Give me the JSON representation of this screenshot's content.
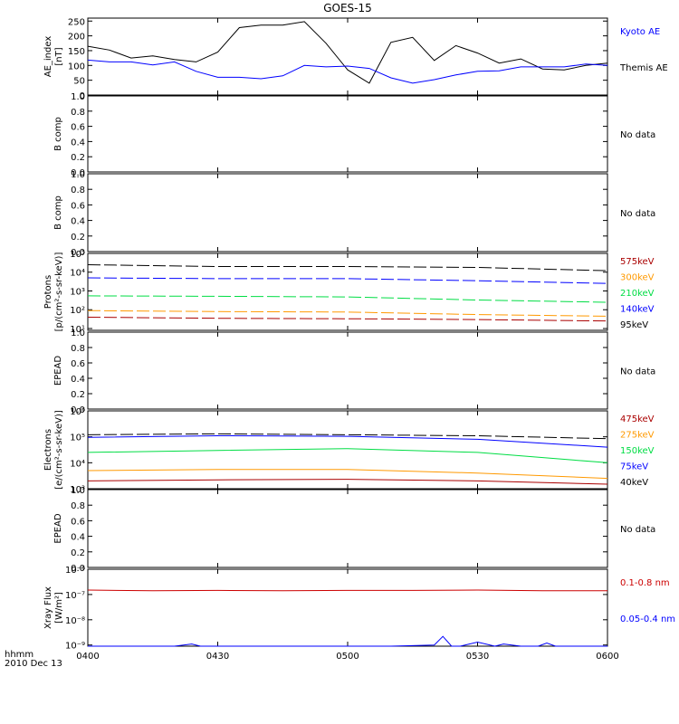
{
  "title": "GOES-15",
  "colors": {
    "black": "#000000",
    "blue": "#0000ff",
    "green": "#00dd44",
    "orange": "#ff9900",
    "red": "#cc0000",
    "darkred": "#aa0000"
  },
  "time_axis": {
    "ticks": [
      "0400",
      "0430",
      "0500",
      "0530",
      "0600"
    ],
    "label_line1": "hhmm",
    "label_line2": "2010 Dec 13",
    "range_min": [
      0,
      120
    ]
  },
  "chart_data": [
    {
      "type": "line",
      "ylabel_lines": [
        "AE_index",
        "[nT]"
      ],
      "yticks": [
        "250",
        "200",
        "150",
        "100",
        "50",
        "0"
      ],
      "ylim": [
        0,
        260
      ],
      "ytick_values": [
        250,
        200,
        150,
        100,
        50,
        0
      ],
      "legend": [
        {
          "text": "Kyoto AE",
          "color": "blue"
        },
        {
          "text": "Themis AE",
          "color": "black"
        }
      ],
      "series": [
        {
          "name": "Themis AE",
          "color": "black",
          "x": [
            0,
            5,
            10,
            15,
            20,
            25,
            30,
            35,
            40,
            45,
            50,
            55,
            60,
            65,
            70,
            75,
            80,
            85,
            90,
            95,
            100,
            105,
            110,
            115,
            120
          ],
          "y": [
            165,
            152,
            125,
            132,
            120,
            112,
            145,
            228,
            236,
            236,
            248,
            175,
            85,
            40,
            178,
            195,
            117,
            167,
            142,
            108,
            122,
            88,
            85,
            100,
            108
          ]
        },
        {
          "name": "Kyoto AE",
          "color": "blue",
          "x": [
            0,
            5,
            10,
            15,
            20,
            25,
            30,
            35,
            40,
            45,
            50,
            55,
            60,
            65,
            70,
            75,
            80,
            85,
            90,
            95,
            100,
            105,
            110,
            115,
            120
          ],
          "y": [
            118,
            112,
            112,
            102,
            112,
            80,
            60,
            60,
            55,
            65,
            100,
            95,
            98,
            90,
            58,
            40,
            52,
            68,
            80,
            82,
            95,
            95,
            95,
            105,
            100
          ]
        }
      ]
    },
    {
      "type": "line",
      "ylabel_lines": [
        "B comp"
      ],
      "yticks": [
        "1.0",
        "0.8",
        "0.6",
        "0.4",
        "0.2",
        "0.0"
      ],
      "ylim": [
        0,
        1
      ],
      "ytick_values": [
        1,
        0.8,
        0.6,
        0.4,
        0.2,
        0
      ],
      "nodata": "No data",
      "series": []
    },
    {
      "type": "line",
      "ylabel_lines": [
        "B comp"
      ],
      "yticks": [
        "1.0",
        "0.8",
        "0.6",
        "0.4",
        "0.2",
        "0.0"
      ],
      "ylim": [
        0,
        1
      ],
      "ytick_values": [
        1,
        0.8,
        0.6,
        0.4,
        0.2,
        0
      ],
      "nodata": "No data",
      "series": []
    },
    {
      "type": "line",
      "log": true,
      "ylabel_lines": [
        "Protons",
        "[p/(cm²-s-sr-keV)]"
      ],
      "yticks": [
        "10⁵",
        "10⁴",
        "10³",
        "10²",
        "10¹"
      ],
      "ytick_values": [
        100000,
        10000,
        1000,
        100,
        10
      ],
      "ylim": [
        8,
        100000
      ],
      "legend": [
        {
          "text": "575keV",
          "color": "darkred"
        },
        {
          "text": "300keV",
          "color": "orange"
        },
        {
          "text": "210keV",
          "color": "green"
        },
        {
          "text": "140keV",
          "color": "blue"
        },
        {
          "text": "95keV",
          "color": "black"
        }
      ],
      "series": [
        {
          "name": "95keV",
          "color": "black",
          "dashed": true,
          "x": [
            0,
            30,
            60,
            90,
            120
          ],
          "y": [
            25000,
            20000,
            20000,
            18000,
            12000
          ]
        },
        {
          "name": "140keV",
          "color": "blue",
          "dashed": true,
          "x": [
            0,
            30,
            60,
            90,
            120
          ],
          "y": [
            5000,
            4500,
            4500,
            3500,
            2500
          ]
        },
        {
          "name": "210keV",
          "color": "green",
          "dashed": true,
          "x": [
            0,
            30,
            60,
            90,
            120
          ],
          "y": [
            550,
            520,
            480,
            330,
            250
          ]
        },
        {
          "name": "300keV",
          "color": "orange",
          "dashed": true,
          "x": [
            0,
            30,
            60,
            90,
            120
          ],
          "y": [
            90,
            80,
            75,
            55,
            45
          ]
        },
        {
          "name": "575keV",
          "color": "darkred",
          "dashed": true,
          "x": [
            0,
            30,
            60,
            90,
            120
          ],
          "y": [
            40,
            35,
            33,
            30,
            25
          ]
        }
      ]
    },
    {
      "type": "line",
      "ylabel_lines": [
        "EPEAD"
      ],
      "yticks": [
        "1.0",
        "0.8",
        "0.6",
        "0.4",
        "0.2",
        "0.0"
      ],
      "ylim": [
        0,
        1
      ],
      "ytick_values": [
        1,
        0.8,
        0.6,
        0.4,
        0.2,
        0
      ],
      "nodata": "No data",
      "series": []
    },
    {
      "type": "line",
      "log": true,
      "ylabel_lines": [
        "Electrons",
        "[e/(cm²-s-sr-keV)]"
      ],
      "yticks": [
        "10⁶",
        "10⁵",
        "10⁴",
        "10³"
      ],
      "ytick_values": [
        1000000,
        100000,
        10000,
        1000
      ],
      "ylim": [
        1000,
        1000000
      ],
      "legend": [
        {
          "text": "475keV",
          "color": "darkred"
        },
        {
          "text": "275keV",
          "color": "orange"
        },
        {
          "text": "150keV",
          "color": "green"
        },
        {
          "text": "75keV",
          "color": "blue"
        },
        {
          "text": "40keV",
          "color": "black"
        }
      ],
      "series": [
        {
          "name": "40keV",
          "color": "black",
          "dashed": true,
          "x": [
            0,
            30,
            60,
            90,
            120
          ],
          "y": [
            120000,
            130000,
            120000,
            110000,
            85000
          ]
        },
        {
          "name": "75keV",
          "color": "blue",
          "dashed": false,
          "x": [
            0,
            30,
            60,
            90,
            120
          ],
          "y": [
            95000,
            110000,
            105000,
            80000,
            40000
          ]
        },
        {
          "name": "150keV",
          "color": "green",
          "dashed": false,
          "x": [
            0,
            30,
            60,
            90,
            120
          ],
          "y": [
            25000,
            30000,
            35000,
            25000,
            10000
          ]
        },
        {
          "name": "275keV",
          "color": "orange",
          "dashed": false,
          "x": [
            0,
            30,
            60,
            90,
            120
          ],
          "y": [
            5000,
            5500,
            5500,
            4000,
            2500
          ]
        },
        {
          "name": "475keV",
          "color": "darkred",
          "dashed": false,
          "x": [
            0,
            30,
            60,
            90,
            120
          ],
          "y": [
            2000,
            2200,
            2300,
            2000,
            1500
          ]
        }
      ]
    },
    {
      "type": "line",
      "ylabel_lines": [
        "EPEAD"
      ],
      "yticks": [
        "1.0",
        "0.8",
        "0.6",
        "0.4",
        "0.2",
        "0.0"
      ],
      "ylim": [
        0,
        1
      ],
      "ytick_values": [
        1,
        0.8,
        0.6,
        0.4,
        0.2,
        0
      ],
      "nodata": "No data",
      "series": []
    },
    {
      "type": "line",
      "log": true,
      "ylabel_lines": [
        "Xray Flux",
        "[W/m²]"
      ],
      "yticks": [
        "10⁻⁶",
        "10⁻⁷",
        "10⁻⁸",
        "10⁻⁹"
      ],
      "ytick_values": [
        1e-06,
        1e-07,
        1e-08,
        1e-09
      ],
      "ylim": [
        9e-10,
        1e-06
      ],
      "legend": [
        {
          "text": "0.1-0.8 nm",
          "color": "red"
        },
        {
          "text": "0.05-0.4 nm",
          "color": "blue"
        }
      ],
      "series": [
        {
          "name": "0.1-0.8 nm",
          "color": "red",
          "x": [
            0,
            15,
            30,
            45,
            60,
            75,
            90,
            105,
            120
          ],
          "y": [
            1.5e-07,
            1.4e-07,
            1.45e-07,
            1.4e-07,
            1.45e-07,
            1.45e-07,
            1.5e-07,
            1.4e-07,
            1.4e-07
          ]
        },
        {
          "name": "0.05-0.4 nm",
          "color": "blue",
          "x": [
            0,
            20,
            24,
            26,
            40,
            70,
            80,
            82,
            84,
            86,
            90,
            94,
            96,
            100,
            104,
            106,
            108,
            110,
            120
          ],
          "y": [
            9e-10,
            9e-10,
            1.1e-09,
            9e-10,
            9e-10,
            9e-10,
            1e-09,
            2.2e-09,
            9e-10,
            9e-10,
            1.3e-09,
            9e-10,
            1.1e-09,
            9e-10,
            9e-10,
            1.2e-09,
            9e-10,
            9e-10,
            9e-10
          ]
        }
      ]
    }
  ]
}
